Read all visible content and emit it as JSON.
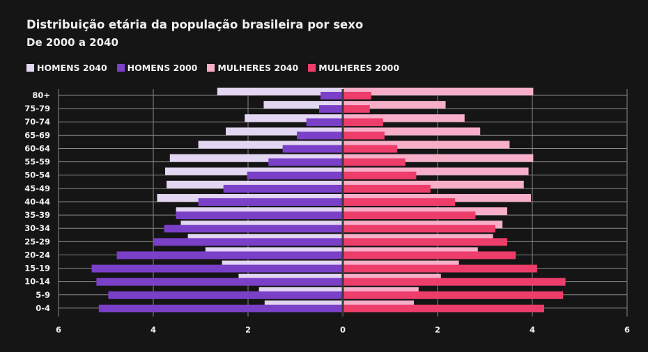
{
  "chart_data": {
    "type": "bar",
    "title": "Distribuição etária da população brasileira por sexo",
    "subtitle": "De 2000 a 2040",
    "categories": [
      "80+",
      "75-79",
      "70-74",
      "65-69",
      "60-64",
      "55-59",
      "50-54",
      "45-49",
      "40-44",
      "35-39",
      "30-34",
      "25-29",
      "20-24",
      "15-19",
      "10-14",
      "5-9",
      "0-4"
    ],
    "x_ticks": [
      "6",
      "4",
      "2",
      "0",
      "2",
      "4",
      "6"
    ],
    "xlim": [
      -6,
      6
    ],
    "grid": true,
    "legend_position": "top-left",
    "series": [
      {
        "name": "HOMENS 2040",
        "color": "#e3d6f3",
        "side": "left",
        "values": [
          2.65,
          1.67,
          2.07,
          2.47,
          3.05,
          3.65,
          3.75,
          3.72,
          3.92,
          3.52,
          3.42,
          3.27,
          2.9,
          2.55,
          2.2,
          1.77,
          1.65
        ]
      },
      {
        "name": "HOMENS 2000",
        "color": "#7b40c8",
        "side": "left",
        "values": [
          0.47,
          0.5,
          0.77,
          0.97,
          1.27,
          1.57,
          2.02,
          2.52,
          3.05,
          3.52,
          3.77,
          4.0,
          4.77,
          5.3,
          5.2,
          4.95,
          5.15
        ]
      },
      {
        "name": "MULHERES 2040",
        "color": "#f7afc9",
        "side": "right",
        "values": [
          4.02,
          2.17,
          2.57,
          2.9,
          3.52,
          4.02,
          3.92,
          3.82,
          3.97,
          3.47,
          3.37,
          3.17,
          2.85,
          2.45,
          2.07,
          1.6,
          1.5
        ]
      },
      {
        "name": "MULHERES 2000",
        "color": "#ec3d6b",
        "side": "right",
        "values": [
          0.6,
          0.57,
          0.85,
          0.88,
          1.15,
          1.32,
          1.55,
          1.85,
          2.37,
          2.8,
          3.22,
          3.47,
          3.65,
          4.1,
          4.7,
          4.65,
          4.25
        ]
      }
    ]
  }
}
